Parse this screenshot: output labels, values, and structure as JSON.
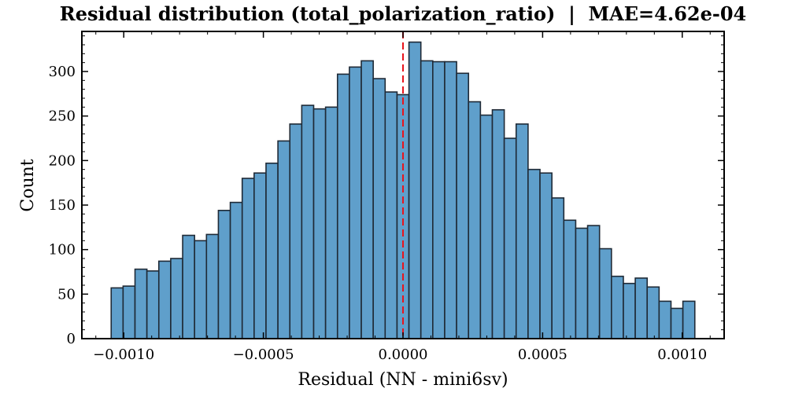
{
  "chart_data": {
    "type": "bar",
    "title": "Residual distribution (total_polarization_ratio)  |  MAE=4.62e-04",
    "xlabel": "Residual (NN - mini6sv)",
    "ylabel": "Count",
    "xlim": [
      -0.00115,
      0.00115
    ],
    "ylim": [
      0,
      345
    ],
    "bin_range": [
      -0.001045,
      0.001045
    ],
    "counts": [
      57,
      59,
      78,
      76,
      87,
      90,
      116,
      110,
      117,
      144,
      153,
      180,
      186,
      197,
      222,
      241,
      262,
      258,
      260,
      297,
      305,
      312,
      292,
      277,
      274,
      333,
      312,
      311,
      311,
      298,
      266,
      251,
      257,
      225,
      241,
      190,
      186,
      158,
      133,
      124,
      127,
      101,
      70,
      62,
      68,
      58,
      42,
      34,
      42
    ],
    "xticks": [
      -0.001,
      -0.0005,
      0.0,
      0.0005,
      0.001
    ],
    "xtick_labels": [
      "−0.0010",
      "−0.0005",
      "0.0000",
      "0.0005",
      "0.0010"
    ],
    "yticks": [
      0,
      50,
      100,
      150,
      200,
      250,
      300
    ],
    "ytick_labels": [
      "0",
      "50",
      "100",
      "150",
      "200",
      "250",
      "300"
    ],
    "reference_line": {
      "x": 0.0,
      "style": "dashed",
      "color": "#e8141c"
    },
    "bar_color": "#5f9fcb",
    "edge_color": "#1f2a36",
    "grid": false,
    "legend": "none"
  }
}
